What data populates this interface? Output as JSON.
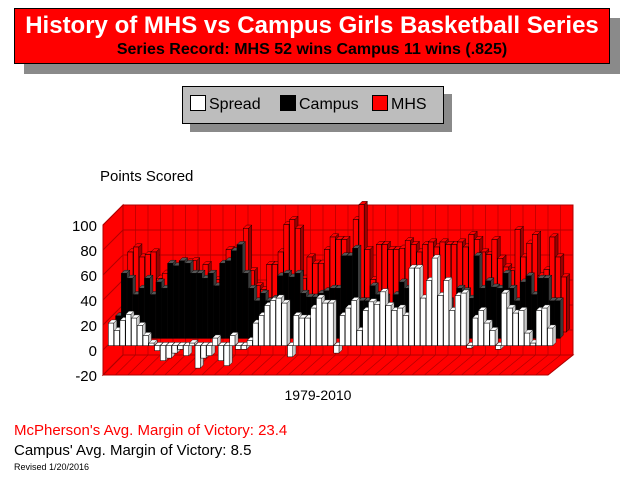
{
  "header": {
    "title": "History of MHS vs Campus Girls Basketball Series",
    "subtitle": "Series Record:  MHS 52 wins  Campus 11 wins (.825)"
  },
  "legend": {
    "items": [
      {
        "label": "Spread",
        "color": "#ffffff"
      },
      {
        "label": "Campus",
        "color": "#000000"
      },
      {
        "label": "MHS",
        "color": "#ff0000"
      }
    ]
  },
  "chart_data": {
    "type": "bar",
    "title": "Points Scored",
    "xlabel": "1979-2010",
    "ylabel": "",
    "ylim": [
      -20,
      100
    ],
    "yticks": [
      "100",
      "80",
      "60",
      "40",
      "20",
      "0",
      "-20"
    ],
    "grid": true,
    "legend_position": "top",
    "series": [
      {
        "name": "Spread",
        "color": "#ffffff",
        "values": [
          18,
          12,
          20,
          25,
          22,
          16,
          8,
          2,
          -4,
          -12,
          -10,
          -6,
          -3,
          -8,
          2,
          -18,
          -10,
          -8,
          6,
          -12,
          -16,
          8,
          -3,
          -3,
          4,
          18,
          24,
          32,
          36,
          38,
          34,
          -9,
          24,
          22,
          22,
          30,
          38,
          34,
          34,
          -6,
          24,
          30,
          36,
          12,
          28,
          35,
          33,
          43,
          32,
          28,
          30,
          24,
          62,
          62,
          38,
          52,
          70,
          40,
          52,
          28,
          40,
          42,
          -2,
          22,
          28,
          18,
          12,
          -3,
          42,
          30,
          26,
          28,
          10,
          2,
          28,
          30,
          14
        ]
      },
      {
        "name": "Campus",
        "color": "#000000",
        "values": [
          18,
          52,
          48,
          35,
          40,
          48,
          35,
          45,
          40,
          60,
          58,
          62,
          60,
          52,
          52,
          48,
          52,
          42,
          60,
          62,
          70,
          75,
          52,
          40,
          30,
          36,
          30,
          32,
          50,
          52,
          49,
          52,
          36,
          33,
          33,
          36,
          38,
          40,
          40,
          66,
          66,
          72,
          30,
          30,
          42,
          35,
          33,
          23,
          35,
          45,
          40,
          40,
          8,
          10,
          30,
          20,
          0,
          30,
          20,
          40,
          38,
          32,
          66,
          40,
          46,
          41,
          40,
          52,
          40,
          30,
          45,
          50,
          35,
          48,
          48,
          30,
          30
        ]
      },
      {
        "name": "MHS",
        "color": "#ff0000",
        "values": [
          36,
          64,
          68,
          60,
          62,
          64,
          43,
          47,
          36,
          48,
          48,
          56,
          57,
          44,
          54,
          30,
          42,
          34,
          66,
          50,
          54,
          83,
          49,
          37,
          34,
          54,
          54,
          64,
          86,
          90,
          83,
          43,
          60,
          55,
          55,
          66,
          76,
          74,
          74,
          60,
          90,
          102,
          66,
          42,
          70,
          70,
          66,
          66,
          67,
          73,
          70,
          64,
          70,
          72,
          68,
          72,
          70,
          70,
          72,
          68,
          78,
          74,
          64,
          62,
          74,
          59,
          52,
          49,
          82,
          60,
          71,
          78,
          45,
          50,
          76,
          60,
          44
        ]
      }
    ]
  },
  "footer": {
    "mhs_margin": "McPherson's Avg. Margin of Victory: 23.4",
    "campus_margin": "Campus' Avg. Margin of Victory: 8.5",
    "revised": "Revised 1/20/2016"
  }
}
